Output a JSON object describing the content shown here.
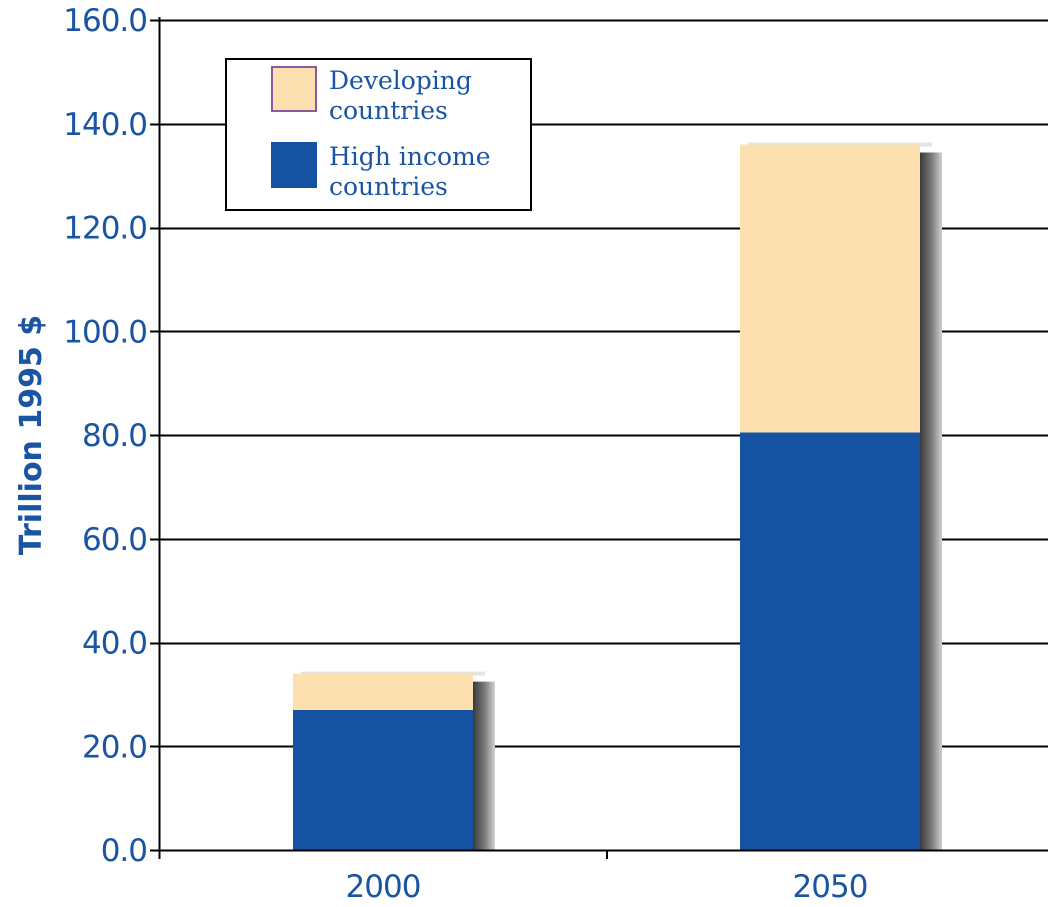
{
  "chart_data": {
    "type": "bar",
    "stacked": true,
    "categories": [
      "2000",
      "2050"
    ],
    "series": [
      {
        "name": "High income countries",
        "values": [
          27.0,
          80.5
        ],
        "color": "#1553a2"
      },
      {
        "name": "Developing countries",
        "values": [
          7.0,
          55.5
        ],
        "color": "#fde0b0"
      }
    ],
    "legend_entries": [
      {
        "lines": [
          "Developing",
          "countries"
        ],
        "color": "#fde0b0",
        "swatch_border": "#8b5a9e"
      },
      {
        "lines": [
          "High income",
          "countries"
        ],
        "color": "#1553a2",
        "swatch_border": "#1553a2"
      }
    ],
    "ylabel": "Trillion 1995 $",
    "xlabel": "",
    "ylim": [
      0,
      160
    ],
    "yticks": [
      0,
      20,
      40,
      60,
      80,
      100,
      120,
      140,
      160
    ],
    "ytick_labels": [
      "0.0",
      "20.0",
      "40.0",
      "60.0",
      "80.0",
      "100.0",
      "120.0",
      "140.0",
      "160.0"
    ],
    "grid": true,
    "legend_position": "top-left",
    "text_color": "#1a55a3",
    "gridline_color": "#000000"
  }
}
